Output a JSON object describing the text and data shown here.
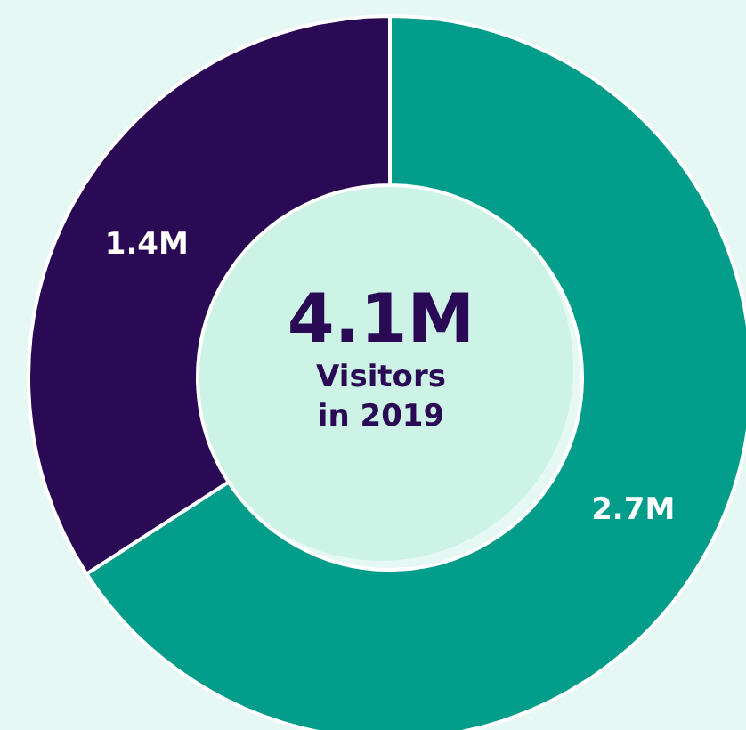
{
  "chart_data": {
    "type": "donut",
    "categories": [
      null,
      null
    ],
    "values": [
      2.7,
      1.4
    ],
    "colors": [
      "#009e8a",
      "#2a0a55"
    ],
    "value_labels": [
      "2.7M",
      "1.4M"
    ],
    "annotations": [
      "4.1M",
      "Visitors in 2019"
    ]
  }
}
